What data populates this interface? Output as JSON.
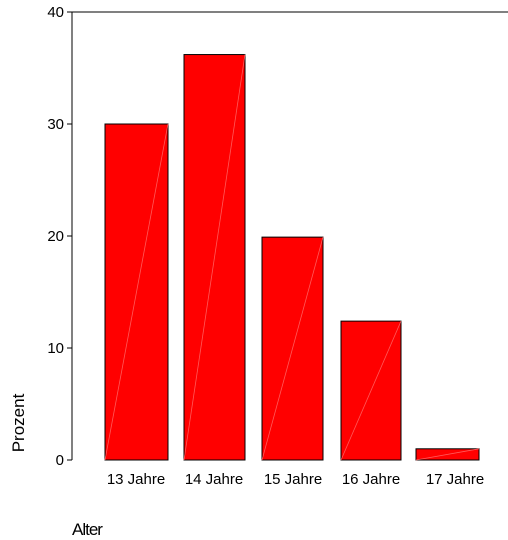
{
  "chart_data": {
    "type": "bar",
    "categories": [
      "13 Jahre",
      "14 Jahre",
      "15 Jahre",
      "16 Jahre",
      "17 Jahre"
    ],
    "values": [
      30.0,
      36.2,
      19.9,
      12.4,
      1.0
    ],
    "xlabel": "Alter",
    "ylabel": "Prozent",
    "ylim": [
      0,
      40
    ],
    "yticks": [
      0,
      10,
      20,
      30,
      40
    ],
    "bar_color": "#ff0000",
    "grid": false
  }
}
